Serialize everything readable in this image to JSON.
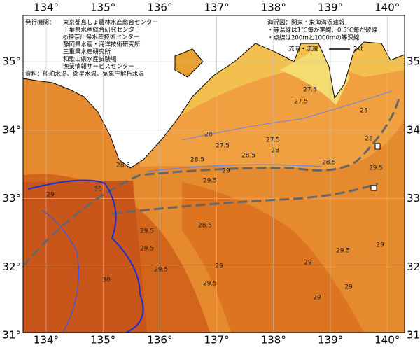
{
  "map": {
    "lon_labels": [
      "134°",
      "135°",
      "136°",
      "137°",
      "138°",
      "139°",
      "140°"
    ],
    "lat_labels": [
      "35°",
      "34°",
      "33°",
      "32°",
      "31°"
    ],
    "publisher_label": "発行機関：",
    "publishers": [
      "東京都島しょ農林水産総合センター",
      "千葉県水産総合研究センター",
      "◎神奈川県水産技術センター",
      "静岡県水産・海洋技術研究所",
      "三重県水産研究所",
      "和歌山県水産試験場",
      "漁業情報サービスセンター"
    ],
    "source": "資料：船舶水温、衛星水温、気象庁解析水温",
    "notes": [
      "海況図：関東・東海海況速報",
      "・等温線は1℃毎が実線、0.5℃毎が破線",
      "・点線は200ｍと1000ｍの等深線"
    ],
    "current_legend": "流向・流速",
    "current_scale": "2kt",
    "contour_labels": [
      "27.5",
      "27.5",
      "28",
      "27.5",
      "28",
      "27.5",
      "28.5",
      "28",
      "28.5",
      "29",
      "28.5",
      "29.5",
      "29.5",
      "29",
      "28.5",
      "29.5",
      "29.5",
      "29",
      "29.5",
      "29.5",
      "29",
      "29",
      "29",
      "29.5",
      "29",
      "30",
      "28.5",
      "28",
      "30"
    ]
  }
}
